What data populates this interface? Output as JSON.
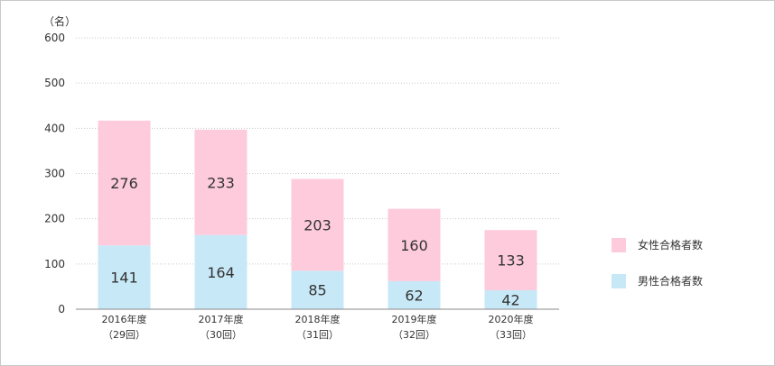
{
  "chart_data": {
    "type": "bar",
    "stacked": true,
    "unit_label": "（名）",
    "categories": [
      "2016年度",
      "2017年度",
      "2018年度",
      "2019年度",
      "2020年度"
    ],
    "category_sublabels": [
      "（29回）",
      "（30回）",
      "（31回）",
      "（32回）",
      "（33回）"
    ],
    "series": [
      {
        "name": "男性合格者数",
        "color": "#c7e9f7",
        "values": [
          141,
          164,
          85,
          62,
          42
        ]
      },
      {
        "name": "女性合格者数",
        "color": "#fdcbdc",
        "values": [
          276,
          233,
          203,
          160,
          133
        ]
      }
    ],
    "ylim": [
      0,
      600
    ],
    "yticks": [
      0,
      100,
      200,
      300,
      400,
      500,
      600
    ],
    "grid": true,
    "legend_position": "right"
  }
}
